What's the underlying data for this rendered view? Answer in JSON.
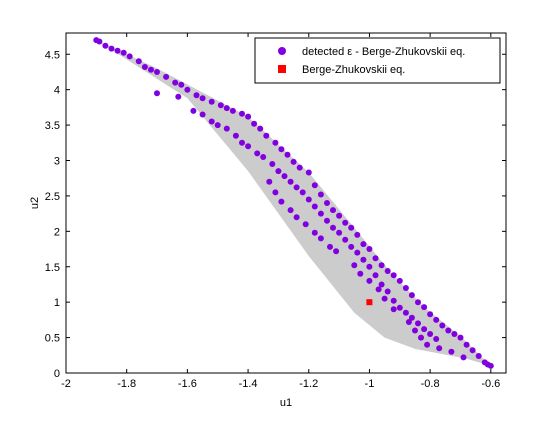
{
  "chart_data": {
    "type": "scatter",
    "xlabel": "u1",
    "ylabel": "u2",
    "xlim": [
      -2,
      -0.55
    ],
    "ylim": [
      0,
      4.8
    ],
    "x_ticks": [
      -2,
      -1.8,
      -1.6,
      -1.4,
      -1.2,
      -1,
      -0.8,
      -0.6
    ],
    "x_tick_labels": [
      "-2",
      "-1.8",
      "-1.6",
      "-1.4",
      "-1.2",
      "-1",
      "-0.8",
      "-0.6"
    ],
    "y_ticks": [
      0,
      0.5,
      1,
      1.5,
      2,
      2.5,
      3,
      3.5,
      4,
      4.5
    ],
    "y_tick_labels": [
      "0",
      "0.5",
      "1",
      "1.5",
      "2",
      "2.5",
      "3",
      "3.5",
      "4",
      "4.5"
    ],
    "grid": false,
    "legend_position": "top-right",
    "region": {
      "color": "#cccccc",
      "upper_boundary": [
        [
          -1.9,
          4.7
        ],
        [
          -1.7,
          4.3
        ],
        [
          -1.4,
          3.62
        ],
        [
          -1.2,
          2.83
        ],
        [
          -1.05,
          2.05
        ],
        [
          -0.93,
          1.42
        ],
        [
          -0.82,
          0.93
        ],
        [
          -0.7,
          0.52
        ],
        [
          -0.6,
          0.1
        ]
      ],
      "lower_boundary": [
        [
          -0.6,
          0.1
        ],
        [
          -0.68,
          0.2
        ],
        [
          -0.85,
          0.34
        ],
        [
          -0.95,
          0.5
        ],
        [
          -1.05,
          0.85
        ],
        [
          -1.2,
          1.65
        ],
        [
          -1.4,
          2.85
        ],
        [
          -1.6,
          3.88
        ],
        [
          -1.9,
          4.7
        ]
      ]
    },
    "series": [
      {
        "name": "detected ε - Berge-Zhukovskii eq.",
        "marker": "circle",
        "color": "#8000e0",
        "points": [
          [
            -1.9,
            4.7
          ],
          [
            -1.89,
            4.68
          ],
          [
            -1.87,
            4.62
          ],
          [
            -1.85,
            4.58
          ],
          [
            -1.83,
            4.55
          ],
          [
            -1.81,
            4.52
          ],
          [
            -1.79,
            4.47
          ],
          [
            -1.76,
            4.4
          ],
          [
            -1.74,
            4.32
          ],
          [
            -1.72,
            4.28
          ],
          [
            -1.7,
            4.25
          ],
          [
            -1.67,
            4.18
          ],
          [
            -1.64,
            4.1
          ],
          [
            -1.62,
            4.07
          ],
          [
            -1.6,
            4.0
          ],
          [
            -1.57,
            3.92
          ],
          [
            -1.55,
            3.88
          ],
          [
            -1.52,
            3.83
          ],
          [
            -1.49,
            3.78
          ],
          [
            -1.47,
            3.74
          ],
          [
            -1.45,
            3.7
          ],
          [
            -1.42,
            3.66
          ],
          [
            -1.4,
            3.62
          ],
          [
            -1.38,
            3.52
          ],
          [
            -1.36,
            3.45
          ],
          [
            -1.34,
            3.35
          ],
          [
            -1.31,
            3.25
          ],
          [
            -1.29,
            3.16
          ],
          [
            -1.27,
            3.08
          ],
          [
            -1.25,
            2.98
          ],
          [
            -1.23,
            2.9
          ],
          [
            -1.2,
            2.83
          ],
          [
            -1.18,
            2.65
          ],
          [
            -1.16,
            2.52
          ],
          [
            -1.14,
            2.4
          ],
          [
            -1.12,
            2.3
          ],
          [
            -1.1,
            2.22
          ],
          [
            -1.08,
            2.12
          ],
          [
            -1.06,
            2.05
          ],
          [
            -1.04,
            1.95
          ],
          [
            -1.02,
            1.82
          ],
          [
            -1.0,
            1.75
          ],
          [
            -0.98,
            1.62
          ],
          [
            -0.96,
            1.52
          ],
          [
            -0.94,
            1.44
          ],
          [
            -0.92,
            1.38
          ],
          [
            -0.9,
            1.3
          ],
          [
            -0.88,
            1.2
          ],
          [
            -0.86,
            1.1
          ],
          [
            -0.84,
            1.0
          ],
          [
            -0.82,
            0.93
          ],
          [
            -0.8,
            0.83
          ],
          [
            -0.78,
            0.75
          ],
          [
            -0.76,
            0.67
          ],
          [
            -0.74,
            0.6
          ],
          [
            -0.72,
            0.55
          ],
          [
            -0.7,
            0.5
          ],
          [
            -0.68,
            0.4
          ],
          [
            -0.66,
            0.32
          ],
          [
            -0.64,
            0.24
          ],
          [
            -0.62,
            0.15
          ],
          [
            -0.61,
            0.12
          ],
          [
            -0.6,
            0.1
          ],
          [
            -1.7,
            3.95
          ],
          [
            -1.63,
            3.9
          ],
          [
            -1.58,
            3.7
          ],
          [
            -1.55,
            3.65
          ],
          [
            -1.52,
            3.55
          ],
          [
            -1.5,
            3.5
          ],
          [
            -1.47,
            3.45
          ],
          [
            -1.44,
            3.35
          ],
          [
            -1.42,
            3.25
          ],
          [
            -1.4,
            3.2
          ],
          [
            -1.37,
            3.1
          ],
          [
            -1.35,
            3.05
          ],
          [
            -1.32,
            2.95
          ],
          [
            -1.3,
            2.85
          ],
          [
            -1.28,
            2.78
          ],
          [
            -1.26,
            2.7
          ],
          [
            -1.24,
            2.62
          ],
          [
            -1.22,
            2.55
          ],
          [
            -1.2,
            2.45
          ],
          [
            -1.18,
            2.35
          ],
          [
            -1.16,
            2.25
          ],
          [
            -1.14,
            2.15
          ],
          [
            -1.12,
            2.05
          ],
          [
            -1.1,
            1.98
          ],
          [
            -1.08,
            1.88
          ],
          [
            -1.06,
            1.78
          ],
          [
            -1.04,
            1.7
          ],
          [
            -1.02,
            1.6
          ],
          [
            -1.0,
            1.5
          ],
          [
            -0.98,
            1.38
          ],
          [
            -0.96,
            1.25
          ],
          [
            -0.94,
            1.15
          ],
          [
            -0.92,
            1.02
          ],
          [
            -0.9,
            0.92
          ],
          [
            -0.88,
            0.85
          ],
          [
            -0.86,
            0.78
          ],
          [
            -0.84,
            0.7
          ],
          [
            -0.82,
            0.62
          ],
          [
            -0.8,
            0.55
          ],
          [
            -0.78,
            0.48
          ],
          [
            -1.33,
            2.7
          ],
          [
            -1.31,
            2.55
          ],
          [
            -1.29,
            2.42
          ],
          [
            -1.26,
            2.3
          ],
          [
            -1.24,
            2.2
          ],
          [
            -1.21,
            2.1
          ],
          [
            -1.18,
            1.98
          ],
          [
            -1.16,
            1.9
          ],
          [
            -1.13,
            1.78
          ],
          [
            -1.11,
            1.72
          ],
          [
            -1.05,
            1.52
          ],
          [
            -1.03,
            1.4
          ],
          [
            -1.0,
            1.3
          ],
          [
            -0.97,
            1.18
          ],
          [
            -0.95,
            1.05
          ],
          [
            -0.92,
            0.9
          ],
          [
            -0.87,
            0.72
          ],
          [
            -0.85,
            0.6
          ],
          [
            -0.83,
            0.5
          ],
          [
            -0.81,
            0.4
          ],
          [
            -0.77,
            0.35
          ],
          [
            -0.73,
            0.3
          ],
          [
            -0.69,
            0.22
          ]
        ]
      },
      {
        "name": "Berge-Zhukovskii eq.",
        "marker": "square",
        "color": "#ff0000",
        "points": [
          [
            -1.0,
            1.0
          ]
        ]
      }
    ]
  }
}
